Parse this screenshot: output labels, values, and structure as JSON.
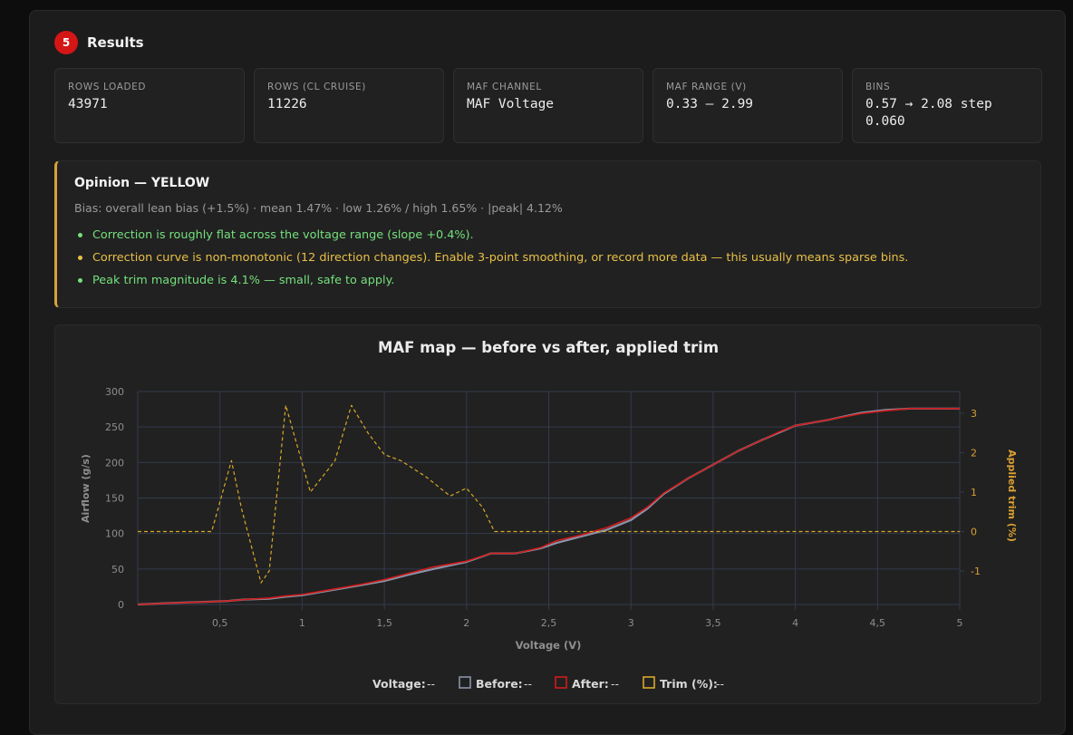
{
  "header": {
    "step": "5",
    "title": "Results"
  },
  "stats": [
    {
      "label": "ROWS LOADED",
      "value": "43971"
    },
    {
      "label": "ROWS (CL CRUISE)",
      "value": "11226"
    },
    {
      "label": "MAF CHANNEL",
      "value": "MAF Voltage"
    },
    {
      "label": "MAF RANGE (V)",
      "value": "0.33 — 2.99"
    },
    {
      "label": "BINS",
      "value": "0.57 → 2.08 step 0.060"
    }
  ],
  "opinion": {
    "title": "Opinion — YELLOW",
    "bias": "Bias: overall lean bias (+1.5%) · mean 1.47% · low 1.26% / high 1.65% · |peak| 4.12%",
    "items": [
      {
        "text": "Correction is roughly flat across the voltage range (slope +0.4%).",
        "level": "green"
      },
      {
        "text": "Correction curve is non-monotonic (12 direction changes). Enable 3-point smoothing, or record more data — this usually means sparse bins.",
        "level": "yellow"
      },
      {
        "text": "Peak trim magnitude is 4.1% — small, safe to apply.",
        "level": "green"
      }
    ]
  },
  "legend": {
    "voltage_label": "Voltage:",
    "voltage_value": "--",
    "before_label": "Before:",
    "before_value": "--",
    "after_label": "After:",
    "after_value": "--",
    "trim_label": "Trim (%):",
    "trim_value": "--"
  },
  "colors": {
    "before": "#8a93a8",
    "after": "#d11b1b",
    "trim": "#d9a827",
    "grid": "#333a4a",
    "axis_text": "#8e8e8e",
    "trim_axis_text": "#d9a031"
  },
  "chart_data": {
    "type": "line",
    "title": "MAF map — before vs after, applied trim",
    "xlabel": "Voltage (V)",
    "ylabel": "Airflow (g/s)",
    "y2label": "Applied trim (%)",
    "xlim": [
      0,
      5
    ],
    "ylim": [
      0,
      300
    ],
    "y2lim": [
      -1.85,
      3.55
    ],
    "x_ticks": [
      "0,5",
      "1",
      "1,5",
      "2",
      "2,5",
      "3",
      "3,5",
      "4",
      "4,5",
      "5"
    ],
    "x_tick_values": [
      0.5,
      1,
      1.5,
      2,
      2.5,
      3,
      3.5,
      4,
      4.5,
      5
    ],
    "y_ticks": [
      0,
      50,
      100,
      150,
      200,
      250,
      300
    ],
    "y2_ticks": [
      -1,
      0,
      1,
      2,
      3
    ],
    "grid": true,
    "legend_position": "bottom",
    "series": [
      {
        "name": "Before",
        "axis": "y",
        "x": [
          0,
          0.2,
          0.45,
          0.55,
          0.65,
          0.8,
          0.9,
          1.0,
          1.1,
          1.2,
          1.35,
          1.5,
          1.65,
          1.8,
          1.9,
          2.0,
          2.15,
          2.3,
          2.45,
          2.55,
          2.7,
          2.85,
          3.0,
          3.1,
          3.2,
          3.35,
          3.5,
          3.65,
          3.8,
          3.9,
          4.0,
          4.2,
          4.4,
          4.55,
          4.7,
          4.85,
          5.0
        ],
        "y": [
          0,
          2,
          4,
          5,
          7,
          8,
          11,
          13,
          17,
          21,
          27,
          33,
          42,
          50,
          55,
          60,
          72,
          72,
          79,
          87,
          96,
          105,
          119,
          135,
          156,
          178,
          197,
          216,
          232,
          242,
          252,
          260,
          270,
          274,
          276,
          276,
          276
        ]
      },
      {
        "name": "After",
        "axis": "y",
        "x": [
          0,
          0.2,
          0.45,
          0.55,
          0.65,
          0.8,
          0.9,
          1.0,
          1.1,
          1.2,
          1.35,
          1.5,
          1.65,
          1.8,
          1.9,
          2.0,
          2.15,
          2.3,
          2.45,
          2.55,
          2.7,
          2.85,
          3.0,
          3.1,
          3.2,
          3.35,
          3.5,
          3.65,
          3.8,
          3.9,
          4.0,
          4.2,
          4.4,
          4.55,
          4.7,
          4.85,
          5.0
        ],
        "y": [
          0,
          2,
          4,
          5,
          7,
          9,
          12,
          14,
          18,
          22,
          28,
          35,
          44,
          53,
          57,
          61,
          72,
          72,
          80,
          90,
          98,
          108,
          122,
          137,
          157,
          178,
          197,
          216,
          232,
          243,
          252,
          260,
          269,
          273,
          276,
          276,
          276
        ]
      },
      {
        "name": "Trim (%)",
        "axis": "y2",
        "x": [
          0,
          0.45,
          0.57,
          0.63,
          0.75,
          0.8,
          0.9,
          1.05,
          1.2,
          1.3,
          1.4,
          1.5,
          1.6,
          1.75,
          1.9,
          2.0,
          2.1,
          2.17,
          2.5,
          3.0,
          4.0,
          5.0
        ],
        "y": [
          0,
          0,
          1.8,
          0.6,
          -1.3,
          -1.0,
          3.2,
          1.0,
          1.8,
          3.2,
          2.5,
          1.95,
          1.8,
          1.4,
          0.9,
          1.1,
          0.6,
          0,
          0,
          0,
          0,
          0
        ]
      }
    ]
  }
}
